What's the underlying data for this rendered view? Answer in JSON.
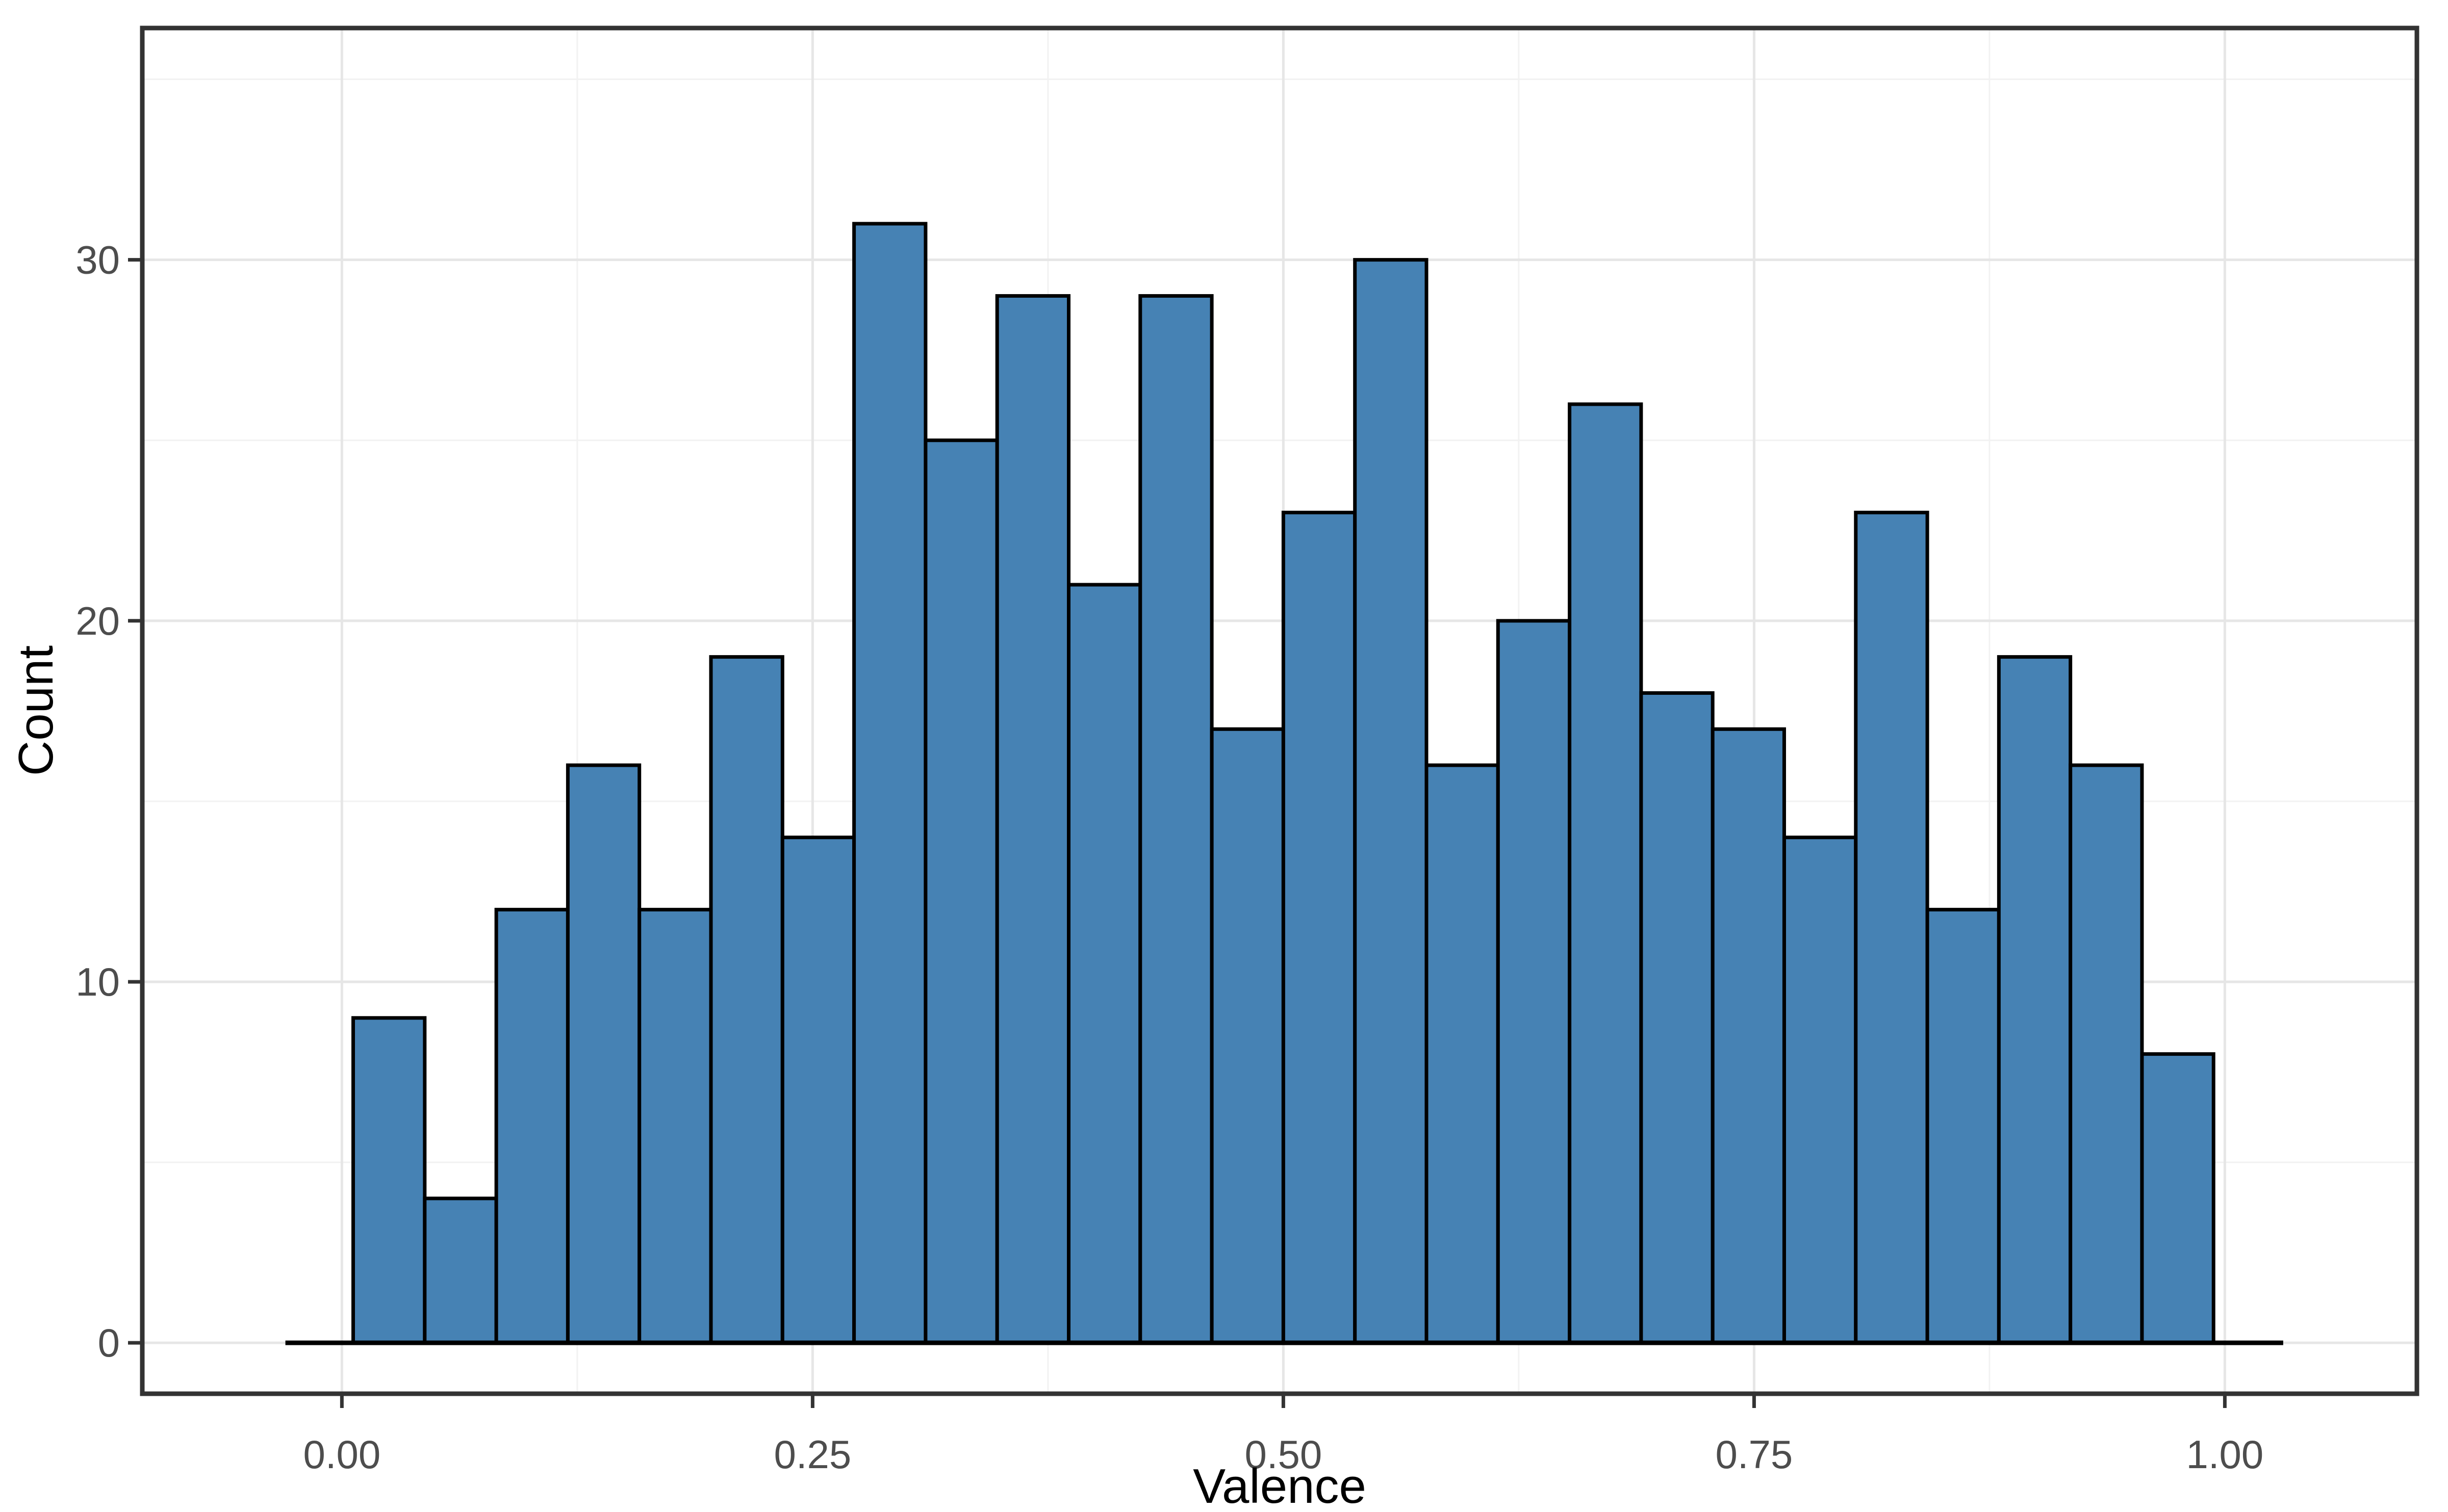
{
  "chart_data": {
    "type": "bar",
    "subtype": "histogram",
    "title": "",
    "xlabel": "Valence",
    "ylabel": "Count",
    "bins": {
      "start": 0.006,
      "width": 0.038,
      "counts": [
        9,
        4,
        12,
        16,
        12,
        19,
        14,
        31,
        25,
        29,
        21,
        29,
        17,
        23,
        30,
        16,
        20,
        26,
        18,
        17,
        14,
        23,
        12,
        19,
        16,
        8
      ]
    },
    "x_ticks": {
      "values": [
        0,
        0.25,
        0.5,
        0.75,
        1
      ],
      "labels": [
        "0.00",
        "0.25",
        "0.50",
        "0.75",
        "1.00"
      ]
    },
    "y_ticks": {
      "values": [
        0,
        10,
        20,
        30
      ],
      "labels": [
        "0",
        "10",
        "20",
        "30"
      ]
    },
    "x_minor_ticks": [
      0.125,
      0.375,
      0.625,
      0.875
    ],
    "y_minor_ticks": [
      5,
      15,
      25,
      35
    ],
    "xlim": [
      -0.106,
      1.102
    ],
    "ylim": [
      -1.41,
      36.42
    ],
    "baseline": {
      "y": 0,
      "x0": -0.03,
      "x1": 1.031
    },
    "grid": "on",
    "legend": "none",
    "colors": {
      "bar_fill": "#4682B4",
      "bar_stroke": "#000000",
      "baseline": "#000000",
      "panel_border": "#333333",
      "grid_major": "#e6e6e6",
      "grid_minor": "#f2f2f2",
      "tick_mark": "#333333",
      "tick_label": "#4d4d4d",
      "axis_title": "#000000",
      "background": "#ffffff"
    }
  }
}
